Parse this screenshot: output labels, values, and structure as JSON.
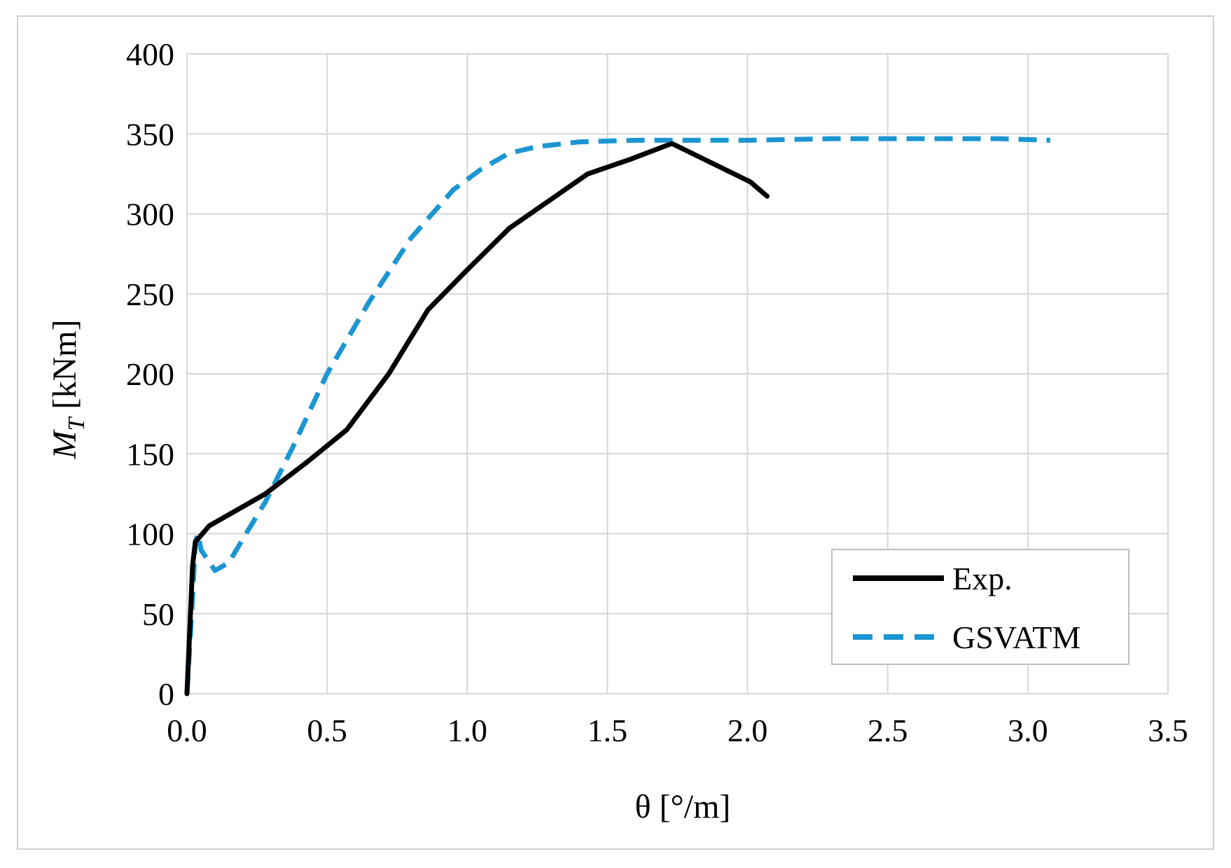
{
  "chart_data": {
    "type": "line",
    "title": "",
    "xlabel": "θ [°/m]",
    "ylabel_main": "M",
    "ylabel_sub": "T",
    "ylabel_unit": " [kNm]",
    "xlim": [
      0,
      3.5
    ],
    "ylim": [
      0,
      400
    ],
    "xticks": [
      0.0,
      0.5,
      1.0,
      1.5,
      2.0,
      2.5,
      3.0,
      3.5
    ],
    "xtick_labels": [
      "0.0",
      "0.5",
      "1.0",
      "1.5",
      "2.0",
      "2.5",
      "3.0",
      "3.5"
    ],
    "yticks": [
      0,
      50,
      100,
      150,
      200,
      250,
      300,
      350,
      400
    ],
    "ytick_labels": [
      "0",
      "50",
      "100",
      "150",
      "200",
      "250",
      "300",
      "350",
      "400"
    ],
    "grid": true,
    "legend_position": "bottom-right",
    "series": [
      {
        "name": "Exp.",
        "color": "#000000",
        "style": "solid",
        "x": [
          0.0,
          0.01,
          0.02,
          0.03,
          0.08,
          0.28,
          0.43,
          0.57,
          0.72,
          0.86,
          1.0,
          1.15,
          1.29,
          1.43,
          1.58,
          1.73,
          1.87,
          2.01,
          2.07
        ],
        "y": [
          0,
          40,
          80,
          95,
          105,
          125,
          145,
          165,
          200,
          240,
          265,
          291,
          308,
          325,
          334,
          344,
          332,
          320,
          311
        ]
      },
      {
        "name": "GSVATM",
        "color": "#1b96d2",
        "style": "dashed",
        "x": [
          0.0,
          0.02,
          0.03,
          0.04,
          0.05,
          0.1,
          0.15,
          0.2,
          0.28,
          0.38,
          0.5,
          0.65,
          0.8,
          0.95,
          1.05,
          1.15,
          1.25,
          1.4,
          1.6,
          1.8,
          2.0,
          2.3,
          2.6,
          2.9,
          3.08
        ],
        "y": [
          0,
          60,
          95,
          100,
          90,
          77,
          82,
          97,
          120,
          155,
          200,
          245,
          285,
          315,
          328,
          338,
          342,
          345,
          346,
          346,
          346,
          347,
          347,
          347,
          346
        ]
      }
    ]
  }
}
